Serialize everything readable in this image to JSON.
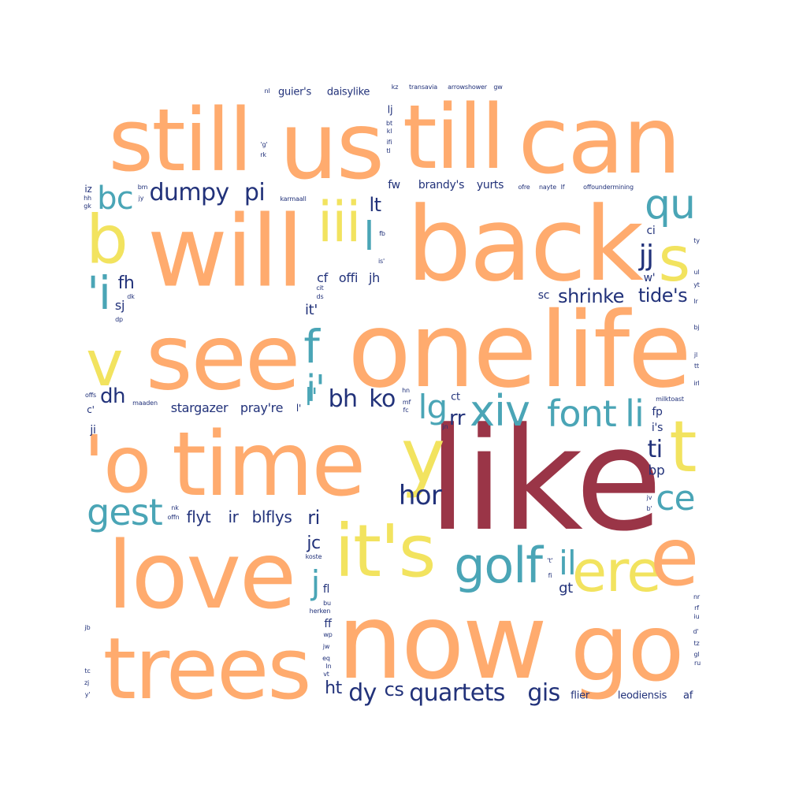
{
  "colors": {
    "orange": "#ffab6e",
    "yellow": "#f2e35f",
    "teal": "#4aa5b6",
    "navy": "#22327a",
    "crimson": "#9a3547",
    "background": "#ffffff"
  },
  "words": [
    "like",
    "one",
    "life",
    "still",
    "us",
    "till",
    "can",
    "will",
    "back",
    "see",
    "time",
    "love",
    "now",
    "go",
    "trees",
    "it's",
    "golf",
    "ere",
    "e",
    "y",
    "t",
    "b",
    "s",
    "v",
    "'o",
    "'i",
    "iii",
    "qu",
    "jj",
    "xiv",
    "font",
    "li",
    "lg",
    "rr",
    "gest",
    "ce",
    "f",
    "i'",
    "l'",
    "il",
    "bc",
    "hor",
    "ti",
    "dumpy",
    "pi",
    "shrinke",
    "tide's",
    "dh",
    "bh",
    "ko",
    "quartets",
    "gis",
    "dy",
    "cs",
    "ht",
    "ri",
    "jc",
    "j",
    "gt",
    "bp",
    "fh",
    "sj",
    "cf",
    "offi",
    "jh",
    "sc",
    "it'",
    "lt",
    "l",
    "fl",
    "ff",
    "fp",
    "i's",
    "flyt",
    "ir",
    "blflys",
    "stargazer",
    "pray're",
    "l'",
    "ji",
    "c'",
    "nk",
    "offn",
    "fw",
    "brandy's",
    "yurts",
    "lj",
    "guier's",
    "daisylike",
    "kz",
    "transavia",
    "arrowshower",
    "gw",
    "flier",
    "leodiensis",
    "af",
    "milktoast",
    "ofre",
    "nayte",
    "lf",
    "offoundermining",
    "karmaall",
    "maaden",
    "offs",
    "iz",
    "hh",
    "gk",
    "bm",
    "jy",
    "dk",
    "dp",
    "nl",
    "'g'",
    "rk",
    "bt",
    "kl",
    "ifi",
    "tl",
    "fb",
    "is'",
    "cit",
    "ds",
    "hn",
    "mf",
    "fc",
    "ct",
    "jn",
    "koste",
    "bu",
    "herken",
    "wp",
    "jw",
    "eq",
    "ln",
    "vt",
    "ci",
    "w'",
    "ty",
    "ul",
    "yt",
    "lr",
    "bj",
    "jl",
    "tt",
    "irl",
    "jv",
    "b'",
    "'t'",
    "fi",
    "nr",
    "rf",
    "iu",
    "d'",
    "tz",
    "gl",
    "ru",
    "jb",
    "tc",
    "zj",
    "y'"
  ]
}
